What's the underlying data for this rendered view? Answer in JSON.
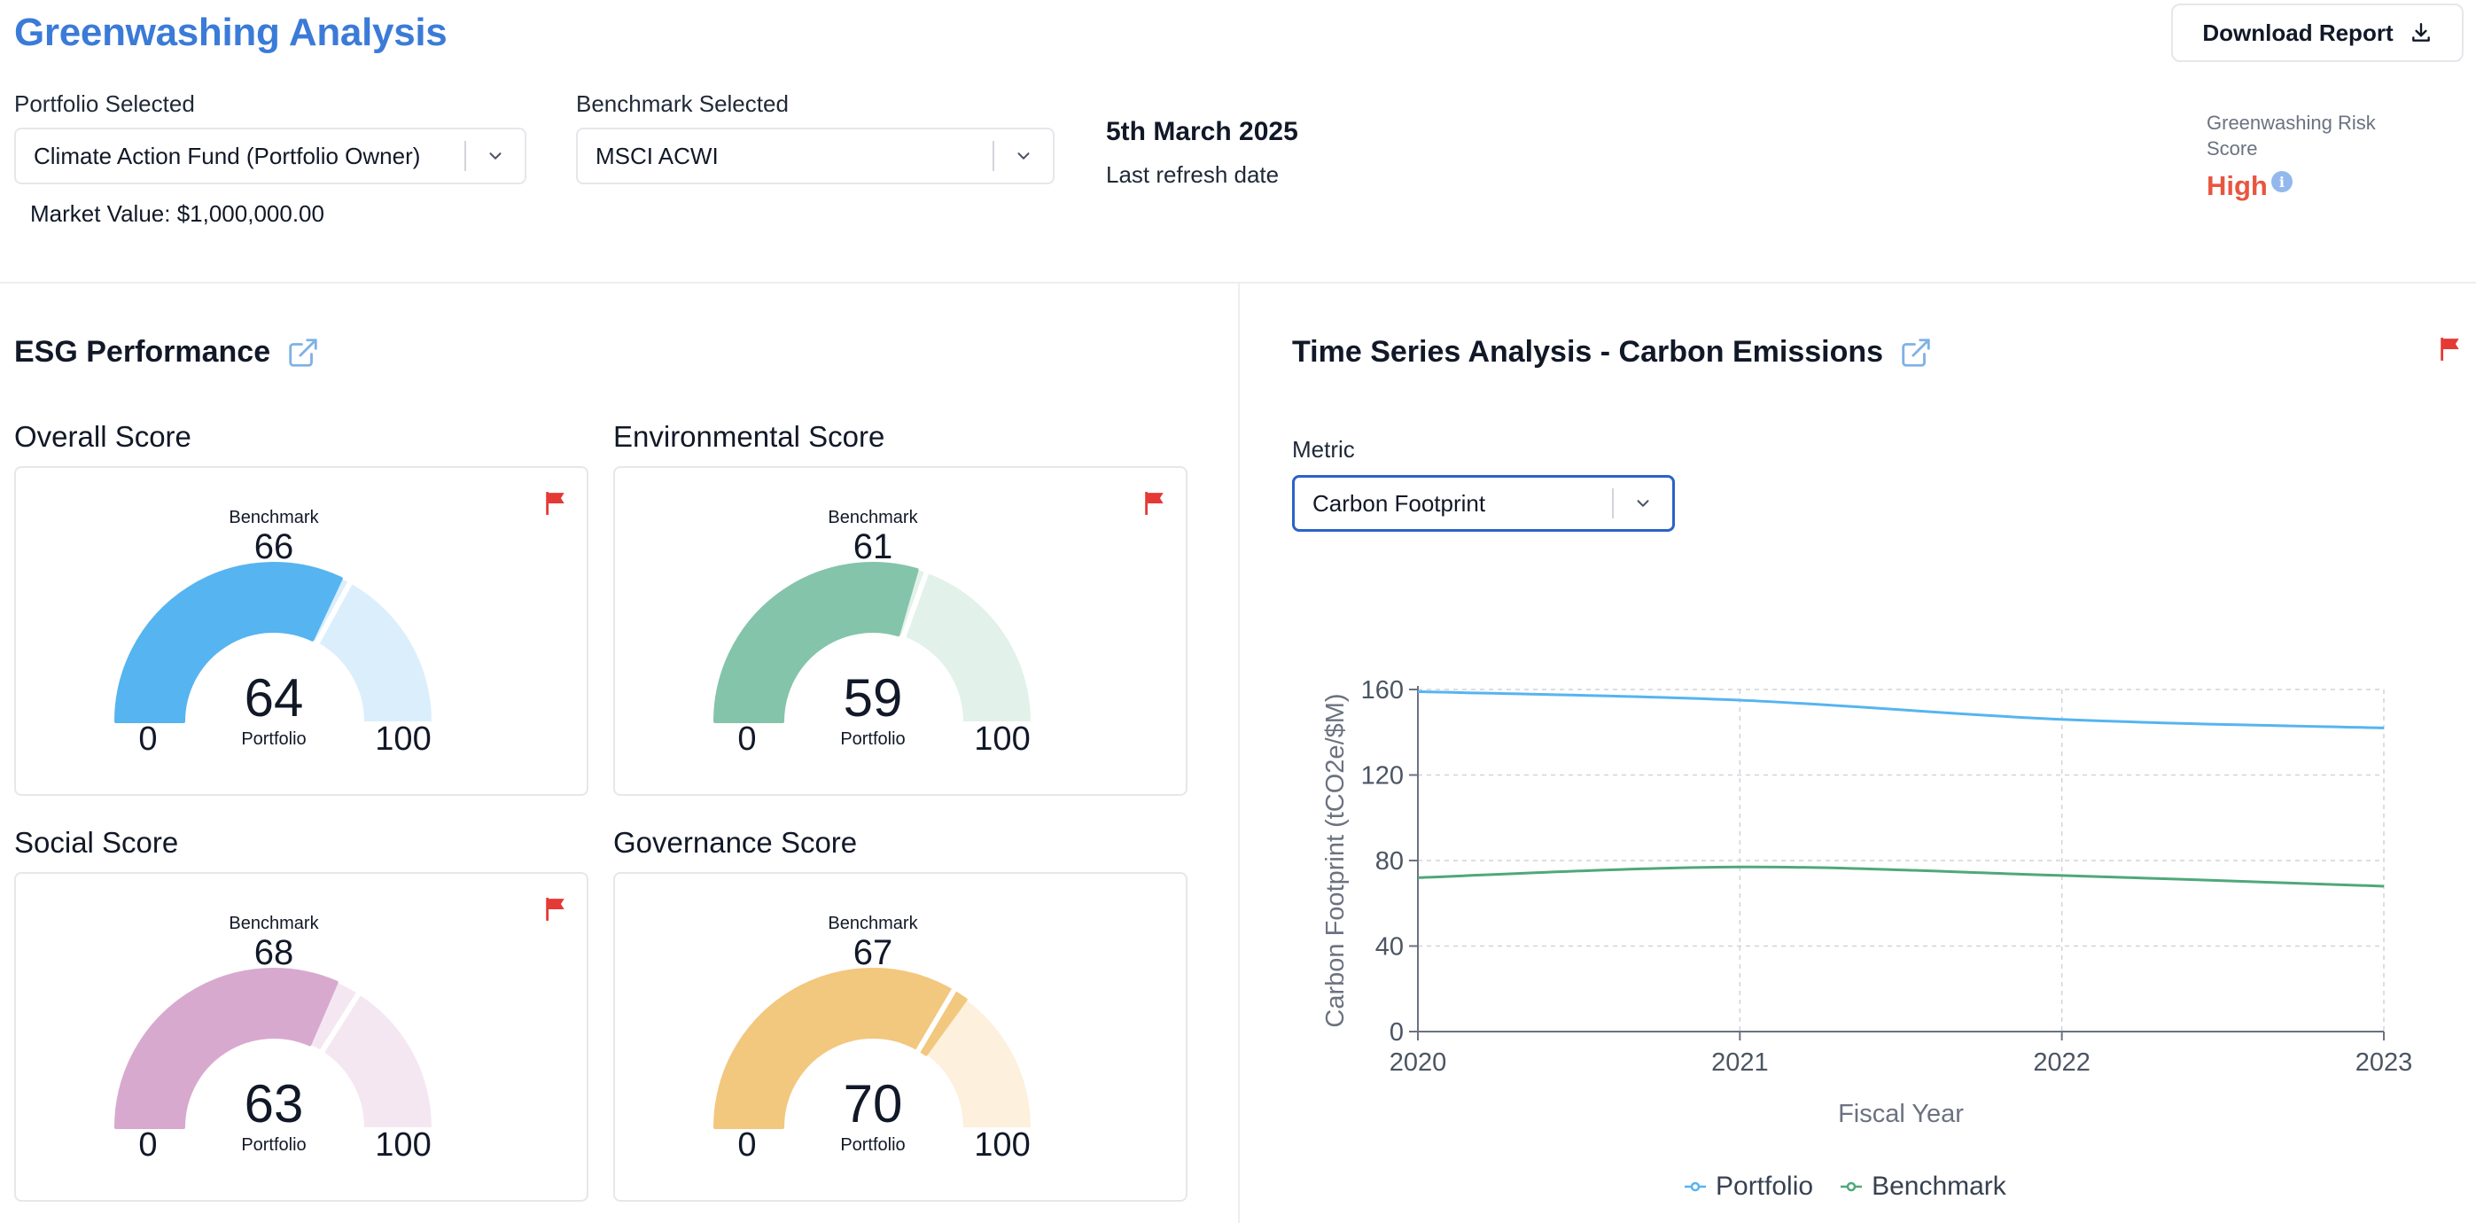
{
  "header": {
    "title": "Greenwashing Analysis",
    "download_label": "Download Report"
  },
  "filters": {
    "portfolio_label": "Portfolio Selected",
    "portfolio_value": "Climate Action Fund (Portfolio Owner)",
    "benchmark_label": "Benchmark Selected",
    "benchmark_value": "MSCI ACWI",
    "market_value": "Market Value: $1,000,000.00",
    "refresh_date": "5th March 2025",
    "refresh_label": "Last refresh date"
  },
  "risk": {
    "label": "Greenwashing Risk Score",
    "value": "High",
    "info_glyph": "i",
    "color": "#e8563f"
  },
  "esg": {
    "title": "ESG Performance",
    "benchmark_caption": "Benchmark",
    "portfolio_caption": "Portfolio",
    "scale_min": "0",
    "scale_max": "100",
    "cards": [
      {
        "key": "overall",
        "title": "Overall Score",
        "benchmark": 66,
        "portfolio": 64,
        "color": "#56b4f0",
        "light": "#dbeefc",
        "flagged": true
      },
      {
        "key": "environmental",
        "title": "Environmental Score",
        "benchmark": 61,
        "portfolio": 59,
        "color": "#84c4aa",
        "light": "#e2f1ea",
        "flagged": true
      },
      {
        "key": "social",
        "title": "Social Score",
        "benchmark": 68,
        "portfolio": 63,
        "color": "#d8a9cf",
        "light": "#f5e7f2",
        "flagged": true
      },
      {
        "key": "governance",
        "title": "Governance Score",
        "benchmark": 67,
        "portfolio": 70,
        "color": "#f2c77e",
        "light": "#fdf0dc",
        "flagged": false
      }
    ]
  },
  "timeseries": {
    "title": "Time Series Analysis - Carbon Emissions",
    "metric_label": "Metric",
    "metric_value": "Carbon Footprint",
    "flagged": true
  },
  "chart_data": {
    "type": "line",
    "x": [
      "2020",
      "2021",
      "2022",
      "2023"
    ],
    "series": [
      {
        "name": "Portfolio",
        "values": [
          159,
          155,
          146,
          142
        ],
        "color": "#56b4f0"
      },
      {
        "name": "Benchmark",
        "values": [
          72,
          77,
          73,
          68
        ],
        "color": "#4fa87a"
      }
    ],
    "xlabel": "Fiscal Year",
    "ylabel": "Carbon Footprint (tCO2e/$M)",
    "ylim": [
      0,
      160
    ],
    "yticks": [
      0,
      40,
      80,
      120,
      160
    ],
    "grid": true,
    "legend": "bottom"
  }
}
